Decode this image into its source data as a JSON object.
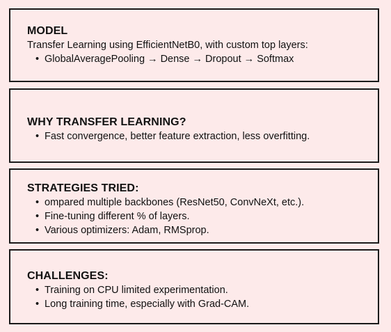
{
  "sections": [
    {
      "title": "MODEL",
      "description": "Transfer Learning using EfficientNetB0, with custom top layers:",
      "bullets": [
        "GlobalAveragePooling → Dense → Dropout → Softmax"
      ]
    },
    {
      "title": "WHY TRANSFER LEARNING?",
      "description": "",
      "bullets": [
        "Fast convergence, better feature extraction, less overfitting."
      ]
    },
    {
      "title": "STRATEGIES TRIED:",
      "description": "",
      "bullets": [
        "ompared multiple backbones (ResNet50, ConvNeXt, etc.).",
        "Fine-tuning different % of layers.",
        "Various optimizers: Adam, RMSprop."
      ]
    },
    {
      "title": "CHALLENGES:",
      "description": "",
      "bullets": [
        "Training on CPU limited experimentation.",
        "Long training time, especially with Grad-CAM."
      ]
    }
  ]
}
